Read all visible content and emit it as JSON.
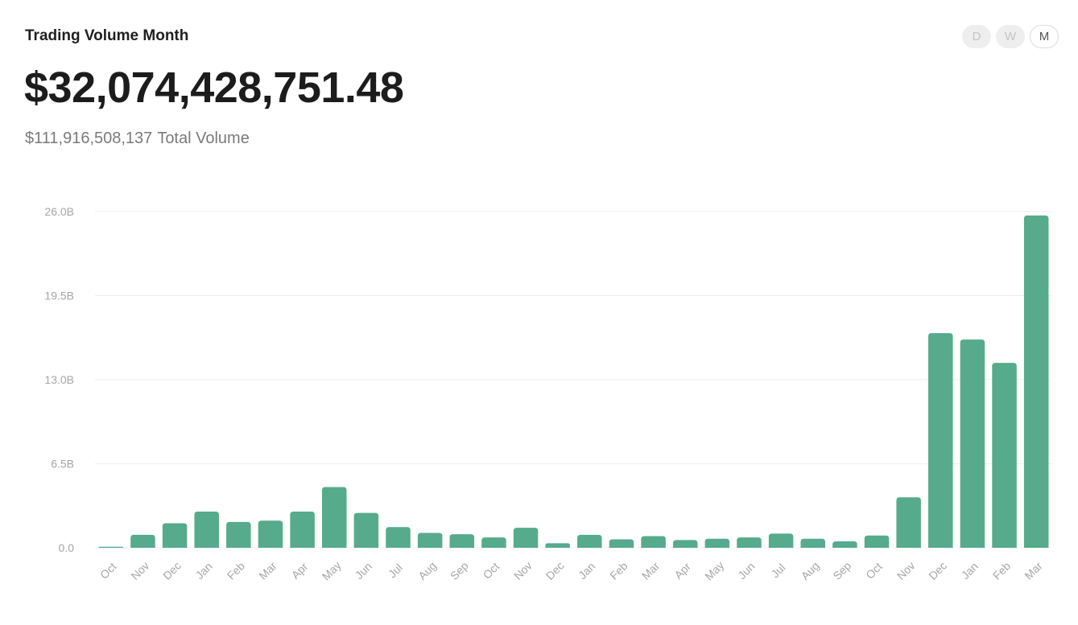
{
  "header": {
    "title": "Trading Volume Month",
    "value": "$32,074,428,751.48",
    "total_amount": "$111,916,508,137",
    "total_label": "Total Volume"
  },
  "toggles": [
    {
      "label": "D",
      "active": false
    },
    {
      "label": "W",
      "active": false
    },
    {
      "label": "M",
      "active": true
    }
  ],
  "colors": {
    "bar": "#56ab8c",
    "grid": "#efefef",
    "axis_text": "#a6a6a6"
  },
  "chart_data": {
    "type": "bar",
    "title": "Trading Volume Month",
    "xlabel": "",
    "ylabel": "",
    "y_ticks": [
      "0.0",
      "6.5B",
      "13.0B",
      "19.5B",
      "26.0B"
    ],
    "ylim": [
      0,
      26
    ],
    "unit": "B",
    "grid": true,
    "categories": [
      "Oct",
      "Nov",
      "Dec",
      "Jan",
      "Feb",
      "Mar",
      "Apr",
      "May",
      "Jun",
      "Jul",
      "Aug",
      "Sep",
      "Oct",
      "Nov",
      "Dec",
      "Jan",
      "Feb",
      "Mar",
      "Apr",
      "May",
      "Jun",
      "Jul",
      "Aug",
      "Sep",
      "Oct",
      "Nov",
      "Dec",
      "Jan",
      "Feb",
      "Mar"
    ],
    "values": [
      0.05,
      1.0,
      1.9,
      2.8,
      2.0,
      2.1,
      2.8,
      4.7,
      2.7,
      1.6,
      1.15,
      1.05,
      0.8,
      1.55,
      0.35,
      1.0,
      0.65,
      0.9,
      0.6,
      0.7,
      0.8,
      1.1,
      0.7,
      0.5,
      0.95,
      3.9,
      16.6,
      16.1,
      14.3,
      25.7
    ]
  }
}
